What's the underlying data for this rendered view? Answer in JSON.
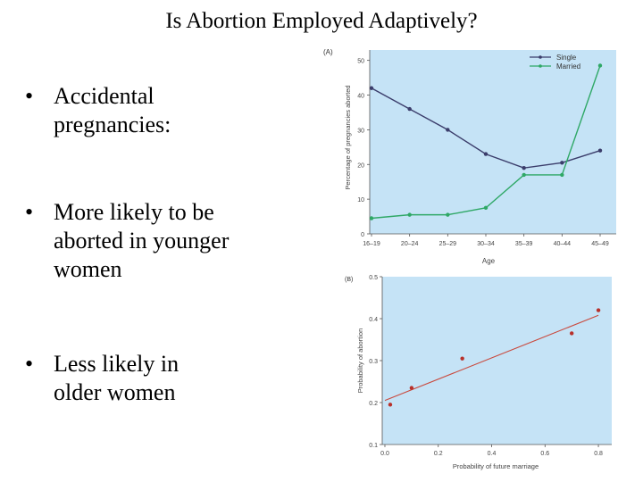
{
  "slide": {
    "title": "Is Abortion Employed Adaptively?",
    "bullets": [
      {
        "marker": "•",
        "lines": [
          "Accidental",
          "pregnancies:"
        ]
      },
      {
        "marker": "•",
        "lines": [
          "More likely to be",
          "aborted in younger",
          "women"
        ]
      },
      {
        "marker": "•",
        "lines": [
          "Less likely in",
          "older women"
        ]
      }
    ]
  },
  "colors": {
    "plot_bg": "#c5e3f6",
    "single": "#3b3d6b",
    "married": "#2fa866",
    "fit": "#c94a3e",
    "points": "#b8302a"
  },
  "chart_data": [
    {
      "type": "line",
      "panel_label": "(A)",
      "categories": [
        "16–19",
        "20–24",
        "25–29",
        "30–34",
        "35–39",
        "40–44",
        "45–49"
      ],
      "series": [
        {
          "name": "Single",
          "values": [
            42,
            36,
            30,
            23,
            19,
            20.5,
            24
          ]
        },
        {
          "name": "Married",
          "values": [
            4.5,
            5.5,
            5.5,
            7.5,
            17,
            17,
            48.5
          ]
        }
      ],
      "xlabel": "Age",
      "ylabel": "Percentage of pregnancies aborted",
      "ylim": [
        0,
        53
      ],
      "yticks": [
        0,
        10,
        20,
        30,
        40,
        50
      ],
      "legend": "top-right",
      "grid": false
    },
    {
      "type": "scatter",
      "panel_label": "(B)",
      "x": [
        0.02,
        0.1,
        0.29,
        0.7,
        0.8
      ],
      "y": [
        0.195,
        0.235,
        0.305,
        0.365,
        0.42
      ],
      "fit_line": {
        "x": [
          0.0,
          0.8
        ],
        "y": [
          0.205,
          0.408
        ]
      },
      "xlabel": "Probability of future marriage",
      "ylabel": "Probability of abortion",
      "xlim": [
        -0.01,
        0.85
      ],
      "ylim": [
        0.1,
        0.5
      ],
      "xticks": [
        "0.0",
        "0.2",
        "0.4",
        "0.6",
        "0.8"
      ],
      "yticks": [
        "0.1",
        "0.2",
        "0.3",
        "0.4",
        "0.5"
      ],
      "grid": false
    }
  ]
}
